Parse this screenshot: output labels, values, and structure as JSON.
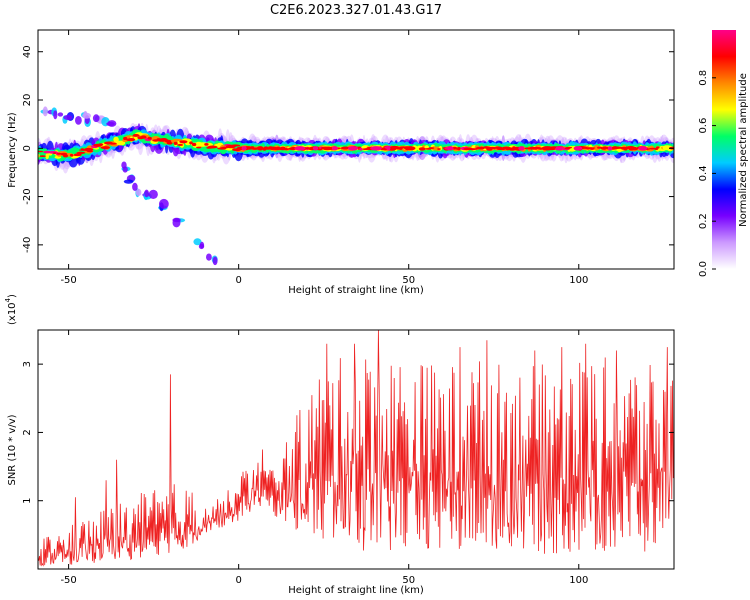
{
  "title": "C2E6.2023.327.01.43.G17",
  "chart_data": [
    {
      "type": "heatmap",
      "xlabel": "Height of straight line (km)",
      "ylabel": "Frequency (Hz)",
      "xlim": [
        -59,
        128
      ],
      "ylim": [
        -50,
        49
      ],
      "xticks": [
        -50,
        0,
        50,
        100
      ],
      "yticks": [
        -40,
        -20,
        0,
        20,
        40
      ],
      "colorbar": {
        "label": "Normalized spectral amplitude",
        "range": [
          0,
          1
        ],
        "ticks": [
          "0.0",
          "0.2",
          "0.4",
          "0.6",
          "0.8"
        ],
        "tick_values": [
          0,
          0.2,
          0.4,
          0.6,
          0.8
        ],
        "colormap": [
          "#ffffff",
          "#cc99ff",
          "#7700ff",
          "#0000ff",
          "#00ccff",
          "#00ff66",
          "#ffff00",
          "#ff8800",
          "#ff0000",
          "#ff0088"
        ]
      },
      "ridge": {
        "x": [
          -59,
          -50,
          -45,
          -40,
          -35,
          -30,
          -25,
          -20,
          -15,
          -10,
          -5,
          0,
          20,
          50,
          80,
          110,
          128
        ],
        "y": [
          -2,
          -3,
          -1,
          1,
          3,
          5,
          4,
          3,
          2,
          1,
          0.5,
          0,
          0,
          0,
          0,
          0,
          0
        ]
      },
      "features": [
        {
          "name": "upper-branch",
          "x": [
            -56,
            -53,
            -50,
            -46,
            -44,
            -41,
            -38
          ],
          "y": [
            15,
            14,
            13,
            13,
            12,
            11,
            10
          ]
        },
        {
          "name": "lower-branch",
          "x": [
            -34,
            -32,
            -30,
            -28,
            -26,
            -22,
            -18,
            -12,
            -8
          ],
          "y": [
            -8,
            -13,
            -17,
            -19,
            -20,
            -24,
            -31,
            -40,
            -46
          ]
        }
      ]
    },
    {
      "type": "line",
      "xlabel": "Height of straight line (km)",
      "ylabel": "SNR (10 * v/v)",
      "yscale_label": "(x10",
      "yscale_exp": "4",
      "xlim": [
        -59,
        128
      ],
      "ylim": [
        0,
        3.5
      ],
      "xticks": [
        -50,
        0,
        50,
        100
      ],
      "yticks": [
        1,
        2,
        3
      ],
      "color": "#ee2222",
      "envelope": {
        "x": [
          -59,
          -50,
          -40,
          -30,
          -25,
          -20,
          -15,
          -10,
          -5,
          0,
          5,
          10,
          15,
          20,
          25,
          30,
          40,
          50,
          60,
          70,
          80,
          90,
          100,
          110,
          120,
          128
        ],
        "low": [
          0.05,
          0.05,
          0.1,
          0.15,
          0.2,
          0.2,
          0.3,
          0.5,
          0.6,
          0.7,
          0.9,
          0.8,
          0.6,
          0.5,
          0.3,
          0.3,
          0.2,
          0.2,
          0.2,
          0.2,
          0.2,
          0.2,
          0.2,
          0.2,
          0.2,
          0.5
        ],
        "high": [
          0.5,
          0.7,
          1.0,
          1.2,
          1.3,
          1.4,
          1.3,
          1.2,
          1.1,
          1.4,
          1.6,
          1.5,
          2.0,
          2.6,
          3.0,
          3.1,
          3.2,
          3.1,
          3.0,
          3.1,
          3.0,
          3.0,
          3.1,
          3.1,
          3.0,
          2.9
        ]
      },
      "spikes": [
        {
          "x": -48,
          "y": 1.05
        },
        {
          "x": -39,
          "y": 1.3
        },
        {
          "x": -36,
          "y": 1.6
        },
        {
          "x": -20,
          "y": 2.85
        },
        {
          "x": 7,
          "y": 1.75
        },
        {
          "x": 26,
          "y": 3.3
        },
        {
          "x": 34,
          "y": 3.3
        },
        {
          "x": 41,
          "y": 3.5
        },
        {
          "x": 65,
          "y": 3.25
        },
        {
          "x": 73,
          "y": 3.35
        },
        {
          "x": 87,
          "y": 3.2
        },
        {
          "x": 95,
          "y": 3.25
        },
        {
          "x": 102,
          "y": 3.3
        },
        {
          "x": 111,
          "y": 3.2
        },
        {
          "x": 126,
          "y": 3.25
        }
      ]
    }
  ]
}
